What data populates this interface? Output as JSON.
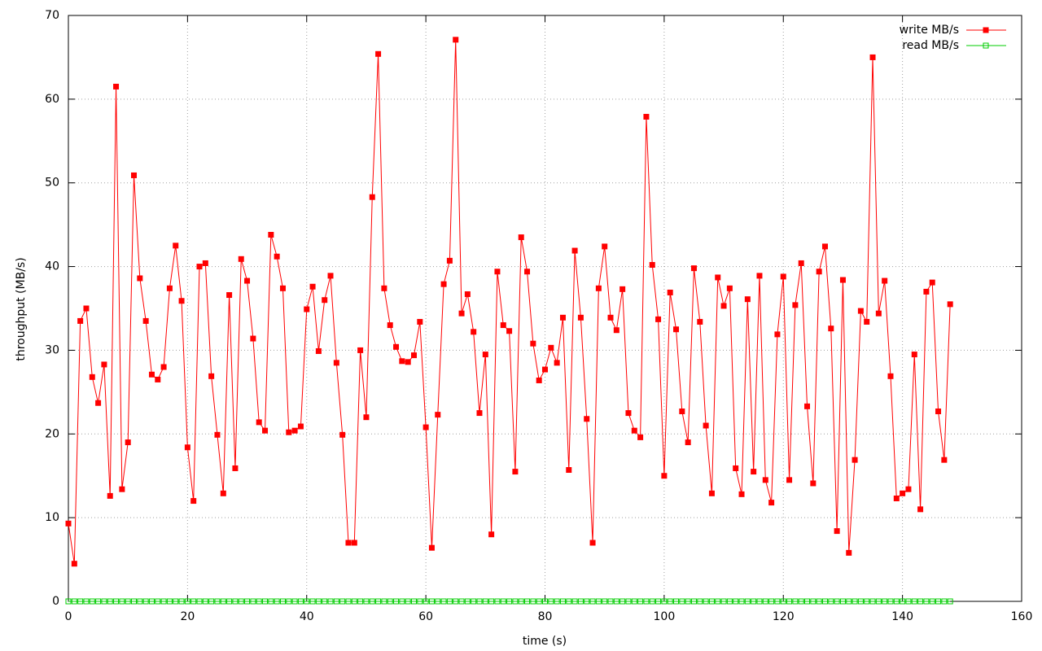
{
  "chart_data": {
    "type": "line",
    "xlabel": "time (s)",
    "ylabel": "throughput (MB/s)",
    "x": [
      0,
      1,
      2,
      3,
      4,
      5,
      6,
      7,
      8,
      9,
      10,
      11,
      12,
      13,
      14,
      15,
      16,
      17,
      18,
      19,
      20,
      21,
      22,
      23,
      24,
      25,
      26,
      27,
      28,
      29,
      30,
      31,
      32,
      33,
      34,
      35,
      36,
      37,
      38,
      39,
      40,
      41,
      42,
      43,
      44,
      45,
      46,
      47,
      48,
      49,
      50,
      51,
      52,
      53,
      54,
      55,
      56,
      57,
      58,
      59,
      60,
      61,
      62,
      63,
      64,
      65,
      66,
      67,
      68,
      69,
      70,
      71,
      72,
      73,
      74,
      75,
      76,
      77,
      78,
      79,
      80,
      81,
      82,
      83,
      84,
      85,
      86,
      87,
      88,
      89,
      90,
      91,
      92,
      93,
      94,
      95,
      96,
      97,
      98,
      99,
      100,
      101,
      102,
      103,
      104,
      105,
      106,
      107,
      108,
      109,
      110,
      111,
      112,
      113,
      114,
      115,
      116,
      117,
      118,
      119,
      120,
      121,
      122,
      123,
      124,
      125,
      126,
      127,
      128,
      129,
      130,
      131,
      132,
      133,
      134,
      135,
      136,
      137,
      138,
      139,
      140,
      141,
      142,
      143,
      144,
      145,
      146,
      147,
      148
    ],
    "series": [
      {
        "name": "write MB/s",
        "color": "#ff0000",
        "marker": "filled-square",
        "values": [
          9.3,
          4.5,
          33.5,
          35,
          26.8,
          23.7,
          28.3,
          12.6,
          61.5,
          13.4,
          19,
          50.9,
          38.6,
          33.5,
          27.1,
          26.5,
          28,
          37.4,
          42.5,
          35.9,
          18.4,
          12,
          40,
          40.4,
          26.9,
          19.9,
          12.9,
          36.6,
          15.9,
          40.9,
          38.3,
          31.4,
          21.4,
          20.4,
          43.8,
          41.2,
          37.4,
          20.2,
          20.4,
          20.9,
          34.9,
          37.6,
          29.9,
          36,
          38.9,
          28.5,
          19.9,
          7,
          7,
          30,
          22,
          48.3,
          65.4,
          37.4,
          33,
          30.4,
          28.7,
          28.6,
          29.4,
          33.4,
          20.8,
          6.4,
          22.3,
          37.9,
          40.7,
          67.1,
          34.4,
          36.7,
          32.2,
          22.5,
          29.5,
          8,
          39.4,
          33,
          32.3,
          15.5,
          43.5,
          39.4,
          30.8,
          26.4,
          27.7,
          30.3,
          28.5,
          33.9,
          15.7,
          41.9,
          33.9,
          21.8,
          7,
          37.4,
          42.4,
          33.9,
          32.4,
          37.3,
          22.5,
          20.4,
          19.6,
          57.9,
          40.2,
          33.7,
          15,
          36.9,
          32.5,
          22.7,
          19,
          39.8,
          33.4,
          21,
          12.9,
          38.7,
          35.3,
          37.4,
          15.9,
          12.8,
          36.1,
          15.5,
          38.9,
          14.5,
          11.8,
          31.9,
          38.8,
          14.5,
          35.4,
          40.4,
          23.3,
          14.1,
          39.4,
          42.4,
          32.6,
          8.4,
          38.4,
          5.8,
          16.9,
          34.7,
          33.4,
          65,
          34.4,
          38.3,
          26.9,
          12.3,
          12.9,
          13.4,
          29.5,
          11,
          37,
          38.1,
          22.7,
          16.9,
          35.5
        ]
      },
      {
        "name": "read MB/s",
        "color": "#00cc00",
        "marker": "open-square",
        "values": [
          0,
          0,
          0,
          0,
          0,
          0,
          0,
          0,
          0,
          0,
          0,
          0,
          0,
          0,
          0,
          0,
          0,
          0,
          0,
          0,
          0,
          0,
          0,
          0,
          0,
          0,
          0,
          0,
          0,
          0,
          0,
          0,
          0,
          0,
          0,
          0,
          0,
          0,
          0,
          0,
          0,
          0,
          0,
          0,
          0,
          0,
          0,
          0,
          0,
          0,
          0,
          0,
          0,
          0,
          0,
          0,
          0,
          0,
          0,
          0,
          0,
          0,
          0,
          0,
          0,
          0,
          0,
          0,
          0,
          0,
          0,
          0,
          0,
          0,
          0,
          0,
          0,
          0,
          0,
          0,
          0,
          0,
          0,
          0,
          0,
          0,
          0,
          0,
          0,
          0,
          0,
          0,
          0,
          0,
          0,
          0,
          0,
          0,
          0,
          0,
          0,
          0,
          0,
          0,
          0,
          0,
          0,
          0,
          0,
          0,
          0,
          0,
          0,
          0,
          0,
          0,
          0,
          0,
          0,
          0,
          0,
          0,
          0,
          0,
          0,
          0,
          0,
          0,
          0,
          0,
          0,
          0,
          0,
          0,
          0,
          0,
          0,
          0,
          0,
          0,
          0,
          0,
          0,
          0,
          0,
          0,
          0,
          0,
          0
        ]
      }
    ],
    "xlim": [
      0,
      160
    ],
    "xticks": [
      0,
      20,
      40,
      60,
      80,
      100,
      120,
      140,
      160
    ],
    "ylim": [
      0,
      70
    ],
    "yticks": [
      0,
      10,
      20,
      30,
      40,
      50,
      60,
      70
    ],
    "grid": true,
    "legend": "top-right"
  }
}
